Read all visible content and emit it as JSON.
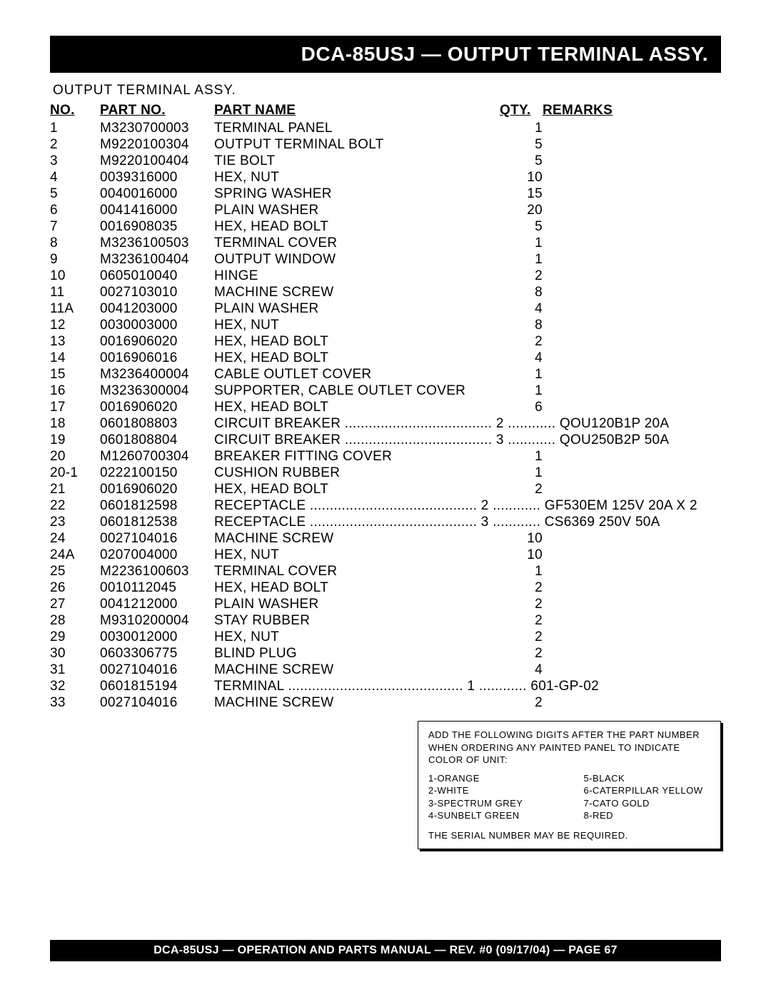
{
  "title_bar": "DCA-85USJ — OUTPUT TERMINAL ASSY.",
  "subtitle": "OUTPUT TERMINAL ASSY.",
  "columns": {
    "no": "NO.",
    "part_no": "PART NO.",
    "part_name": "PART NAME",
    "qty": "QTY.",
    "remarks": "REMARKS"
  },
  "rows": [
    {
      "no": "1",
      "part": "M3230700003",
      "name": "TERMINAL PANEL",
      "qty": "1",
      "rem": ""
    },
    {
      "no": "2",
      "part": "M9220100304",
      "name": "OUTPUT TERMINAL BOLT",
      "qty": "5",
      "rem": ""
    },
    {
      "no": "3",
      "part": "M9220100404",
      "name": "TIE BOLT",
      "qty": "5",
      "rem": ""
    },
    {
      "no": "4",
      "part": "0039316000",
      "name": "HEX, NUT",
      "qty": "10",
      "rem": ""
    },
    {
      "no": "5",
      "part": "0040016000",
      "name": "SPRING WASHER",
      "qty": "15",
      "rem": ""
    },
    {
      "no": "6",
      "part": "0041416000",
      "name": "PLAIN WASHER",
      "qty": "20",
      "rem": ""
    },
    {
      "no": "7",
      "part": "0016908035",
      "name": "HEX, HEAD BOLT",
      "qty": "5",
      "rem": ""
    },
    {
      "no": "8",
      "part": "M3236100503",
      "name": "TERMINAL COVER",
      "qty": "1",
      "rem": ""
    },
    {
      "no": "9",
      "part": "M3236100404",
      "name": "OUTPUT WINDOW",
      "qty": "1",
      "rem": ""
    },
    {
      "no": "10",
      "part": "0605010040",
      "name": "HINGE",
      "qty": "2",
      "rem": ""
    },
    {
      "no": "11",
      "part": "0027103010",
      "name": "MACHINE SCREW",
      "qty": "8",
      "rem": ""
    },
    {
      "no": "11A",
      "part": "0041203000",
      "name": "PLAIN WASHER",
      "qty": "4",
      "rem": ""
    },
    {
      "no": "12",
      "part": "0030003000",
      "name": "HEX, NUT",
      "qty": "8",
      "rem": ""
    },
    {
      "no": "13",
      "part": "0016906020",
      "name": "HEX, HEAD BOLT",
      "qty": "2",
      "rem": ""
    },
    {
      "no": "14",
      "part": "0016906016",
      "name": "HEX, HEAD BOLT",
      "qty": "4",
      "rem": ""
    },
    {
      "no": "15",
      "part": "M3236400004",
      "name": "CABLE OUTLET COVER",
      "qty": "1",
      "rem": ""
    },
    {
      "no": "16",
      "part": "M3236300004",
      "name": "SUPPORTER, CABLE OUTLET COVER",
      "qty": "1",
      "rem": ""
    },
    {
      "no": "17",
      "part": "0016906020",
      "name": "HEX, HEAD BOLT",
      "qty": "6",
      "rem": ""
    },
    {
      "no": "18",
      "part": "0601808803",
      "name": "CIRCUIT BREAKER",
      "qty": "2",
      "rem": "QOU120B1P 20A",
      "dotted": true
    },
    {
      "no": "19",
      "part": "0601808804",
      "name": "CIRCUIT BREAKER",
      "qty": "3",
      "rem": "QOU250B2P 50A",
      "dotted": true
    },
    {
      "no": "20",
      "part": "M1260700304",
      "name": "BREAKER FITTING COVER",
      "qty": "1",
      "rem": ""
    },
    {
      "no": "20-1",
      "part": "0222100150",
      "name": "CUSHION RUBBER",
      "qty": "1",
      "rem": ""
    },
    {
      "no": "21",
      "part": "0016906020",
      "name": "HEX, HEAD BOLT",
      "qty": "2",
      "rem": ""
    },
    {
      "no": "22",
      "part": "0601812598",
      "name": "RECEPTACLE",
      "qty": "2",
      "rem": "GF530EM 125V 20A X 2",
      "dotted": true
    },
    {
      "no": "23",
      "part": "0601812538",
      "name": "RECEPTACLE",
      "qty": "3",
      "rem": "CS6369 250V 50A",
      "dotted": true
    },
    {
      "no": "24",
      "part": "0027104016",
      "name": "MACHINE SCREW",
      "qty": "10",
      "rem": ""
    },
    {
      "no": "24A",
      "part": "0207004000",
      "name": "HEX, NUT",
      "qty": "10",
      "rem": ""
    },
    {
      "no": "25",
      "part": "M2236100603",
      "name": "TERMINAL COVER",
      "qty": "1",
      "rem": ""
    },
    {
      "no": "26",
      "part": "0010112045",
      "name": "HEX, HEAD BOLT",
      "qty": "2",
      "rem": ""
    },
    {
      "no": "27",
      "part": "0041212000",
      "name": "PLAIN WASHER",
      "qty": "2",
      "rem": ""
    },
    {
      "no": "28",
      "part": "M9310200004",
      "name": "STAY RUBBER",
      "qty": "2",
      "rem": ""
    },
    {
      "no": "29",
      "part": "0030012000",
      "name": "HEX, NUT",
      "qty": "2",
      "rem": ""
    },
    {
      "no": "30",
      "part": "0603306775",
      "name": "BLIND PLUG",
      "qty": "2",
      "rem": ""
    },
    {
      "no": "31",
      "part": "0027104016",
      "name": "MACHINE SCREW",
      "qty": "4",
      "rem": ""
    },
    {
      "no": "32",
      "part": "0601815194",
      "name": "TERMINAL",
      "qty": "1",
      "rem": "601-GP-02",
      "dotted": true
    },
    {
      "no": "33",
      "part": "0027104016",
      "name": "MACHINE SCREW",
      "qty": "2",
      "rem": ""
    }
  ],
  "note": {
    "head": "ADD THE FOLLOWING DIGITS AFTER THE PART NUMBER WHEN ORDERING ANY PAINTED PANEL TO INDICATE COLOR OF UNIT:",
    "left": [
      "1-ORANGE",
      "2-WHITE",
      "3-SPECTRUM GREY",
      "4-SUNBELT GREEN"
    ],
    "right": [
      "5-BLACK",
      "6-CATERPILLAR YELLOW",
      "7-CATO GOLD",
      "8-RED"
    ],
    "foot": "THE SERIAL NUMBER MAY BE REQUIRED."
  },
  "footer": "DCA-85USJ — OPERATION AND PARTS MANUAL — REV. #0  (09/17/04) — PAGE 67"
}
